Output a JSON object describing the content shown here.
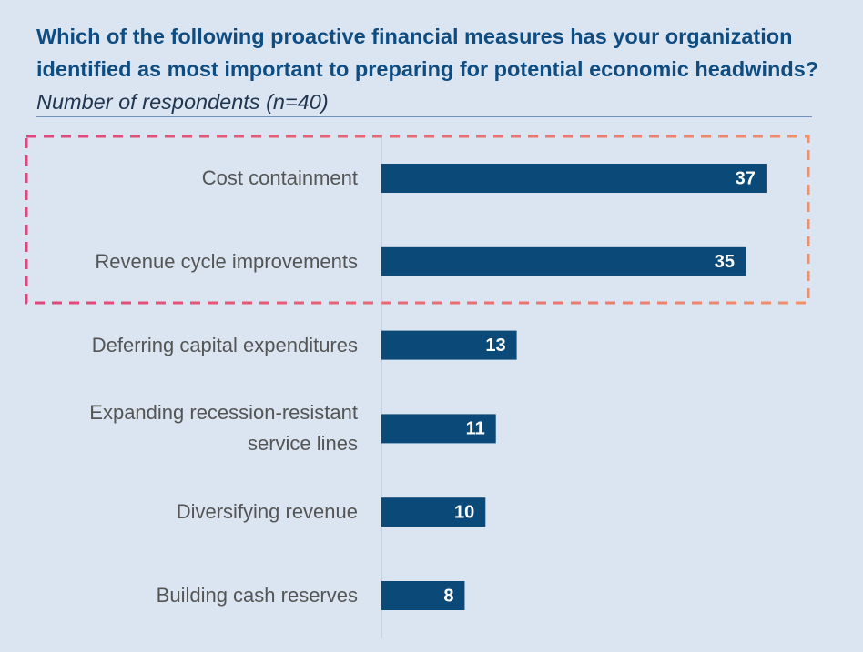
{
  "chart_data": {
    "type": "bar",
    "orientation": "horizontal",
    "title": "Which of the following proactive financial measures has your organization identified as most important to preparing for potential economic headwinds?",
    "subtitle": "Number of respondents (n=40)",
    "categories": [
      "Cost containment",
      "Revenue cycle improvements",
      "Deferring capital expenditures",
      "Expanding recession-resistant service lines",
      "Diversifying revenue",
      "Building cash reserves"
    ],
    "values": [
      37,
      35,
      13,
      11,
      10,
      8
    ],
    "color": "#0b4a78"
  }
}
